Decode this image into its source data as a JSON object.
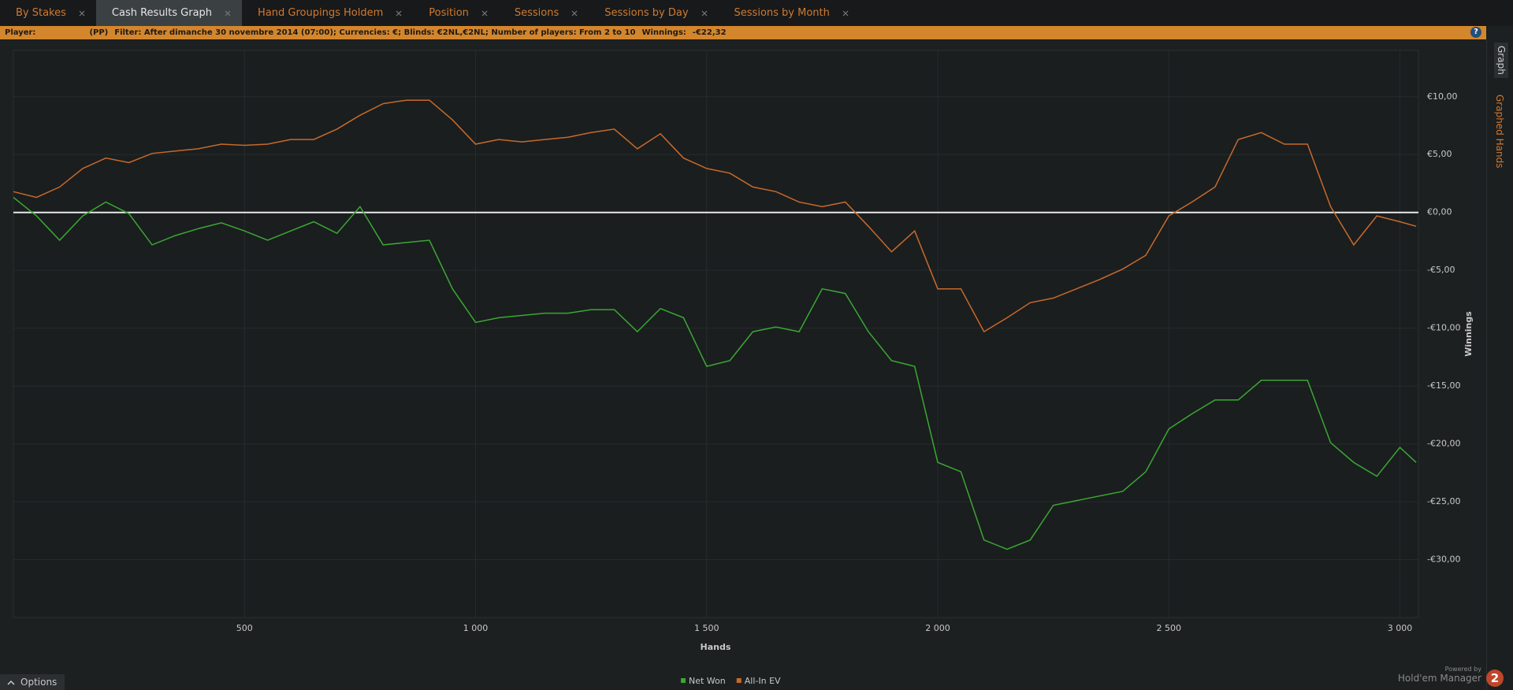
{
  "tabs": [
    "By Stakes",
    "Cash Results Graph",
    "Hand Groupings Holdem",
    "Position",
    "Sessions",
    "Sessions by Day",
    "Sessions by Month"
  ],
  "active_tab": 1,
  "filter_bar": {
    "player_label": "Player:",
    "player_suffix": "(PP)",
    "filter": "Filter:  After dimanche 30 novembre 2014 (07:00); Currencies: €; Blinds: €2NL,€2NL; Number of players: From 2 to 10",
    "winnings_label": "Winnings:",
    "winnings": "-€22,32",
    "help": "?"
  },
  "side_tabs": [
    "Graph",
    "Graphed Hands"
  ],
  "options": "Options",
  "branding": {
    "powered_by": "Powered by",
    "name": "Hold'em Manager",
    "logo": "2"
  },
  "chart_data": {
    "type": "line",
    "x_label": "Hands",
    "y_label": "Winnings",
    "grid": true,
    "zero_line": true,
    "x": [
      0,
      50,
      100,
      150,
      200,
      250,
      300,
      350,
      400,
      450,
      500,
      550,
      600,
      650,
      700,
      750,
      800,
      850,
      900,
      950,
      1000,
      1050,
      1100,
      1150,
      1200,
      1250,
      1300,
      1350,
      1400,
      1450,
      1500,
      1550,
      1600,
      1650,
      1700,
      1750,
      1800,
      1850,
      1900,
      1950,
      2000,
      2050,
      2100,
      2150,
      2200,
      2250,
      2300,
      2350,
      2400,
      2450,
      2500,
      2550,
      2600,
      2650,
      2700,
      2750,
      2800,
      2850,
      2900,
      2950,
      3000,
      3035
    ],
    "series": [
      {
        "name": "Net Won",
        "color": "#3aa832",
        "values": [
          1.3,
          -0.3,
          -2.4,
          -0.3,
          0.9,
          -0.1,
          -2.8,
          -2,
          -1.4,
          -0.9,
          -1.6,
          -2.4,
          -1.6,
          -0.8,
          -1.8,
          0.5,
          -2.8,
          -2.6,
          -2.4,
          -6.6,
          -9.5,
          -9.1,
          -8.9,
          -8.7,
          -8.7,
          -8.4,
          -8.4,
          -10.3,
          -8.3,
          -9.1,
          -13.3,
          -12.8,
          -10.3,
          -9.9,
          -10.3,
          -6.6,
          -7,
          -10.3,
          -12.8,
          -13.3,
          -21.6,
          -22.4,
          -28.3,
          -29.1,
          -28.3,
          -25.3,
          -24.9,
          -24.5,
          -24.1,
          -22.4,
          -18.7,
          -17.4,
          -16.2,
          -16.2,
          -14.5,
          -14.5,
          -14.5,
          -19.9,
          -21.6,
          -22.8,
          -20.3,
          -21.6
        ]
      },
      {
        "name": "All-In EV",
        "color": "#c8692a",
        "values": [
          1.8,
          1.3,
          2.2,
          3.8,
          4.7,
          4.3,
          5.1,
          5.3,
          5.5,
          5.9,
          5.8,
          5.9,
          6.3,
          6.3,
          7.2,
          8.4,
          9.4,
          9.7,
          9.7,
          8,
          5.9,
          6.3,
          6.1,
          6.3,
          6.5,
          6.9,
          7.2,
          5.5,
          6.8,
          4.7,
          3.8,
          3.4,
          2.2,
          1.8,
          0.9,
          0.5,
          0.9,
          -1.2,
          -3.4,
          -1.6,
          -6.6,
          -6.6,
          -10.3,
          -9.1,
          -7.8,
          -7.4,
          -6.6,
          -5.8,
          -4.9,
          -3.7,
          -0.3,
          0.9,
          2.2,
          6.3,
          6.9,
          5.9,
          5.9,
          0.5,
          -2.8,
          -0.3,
          -0.8,
          -1.2
        ]
      }
    ],
    "xlim": [
      0,
      3040
    ],
    "xticks": [
      500,
      {
        "value": 1000,
        "label": "1 000"
      },
      {
        "value": 1500,
        "label": "1 500"
      },
      {
        "value": 2000,
        "label": "2 000"
      },
      {
        "value": 2500,
        "label": "2 500"
      },
      {
        "value": 3000,
        "label": "3 000"
      }
    ],
    "ylim": [
      -35,
      14
    ],
    "yticks": [
      {
        "value": -30,
        "label": "-€30,00"
      },
      {
        "value": -25,
        "label": "-€25,00"
      },
      {
        "value": -20,
        "label": "-€20,00"
      },
      {
        "value": -15,
        "label": "-€15,00"
      },
      {
        "value": -10,
        "label": "-€10,00"
      },
      {
        "value": -5,
        "label": "-€5,00"
      },
      {
        "value": 0,
        "label": "€0,00"
      },
      {
        "value": 5,
        "label": "€5,00"
      },
      {
        "value": 10,
        "label": "€10,00"
      }
    ]
  }
}
